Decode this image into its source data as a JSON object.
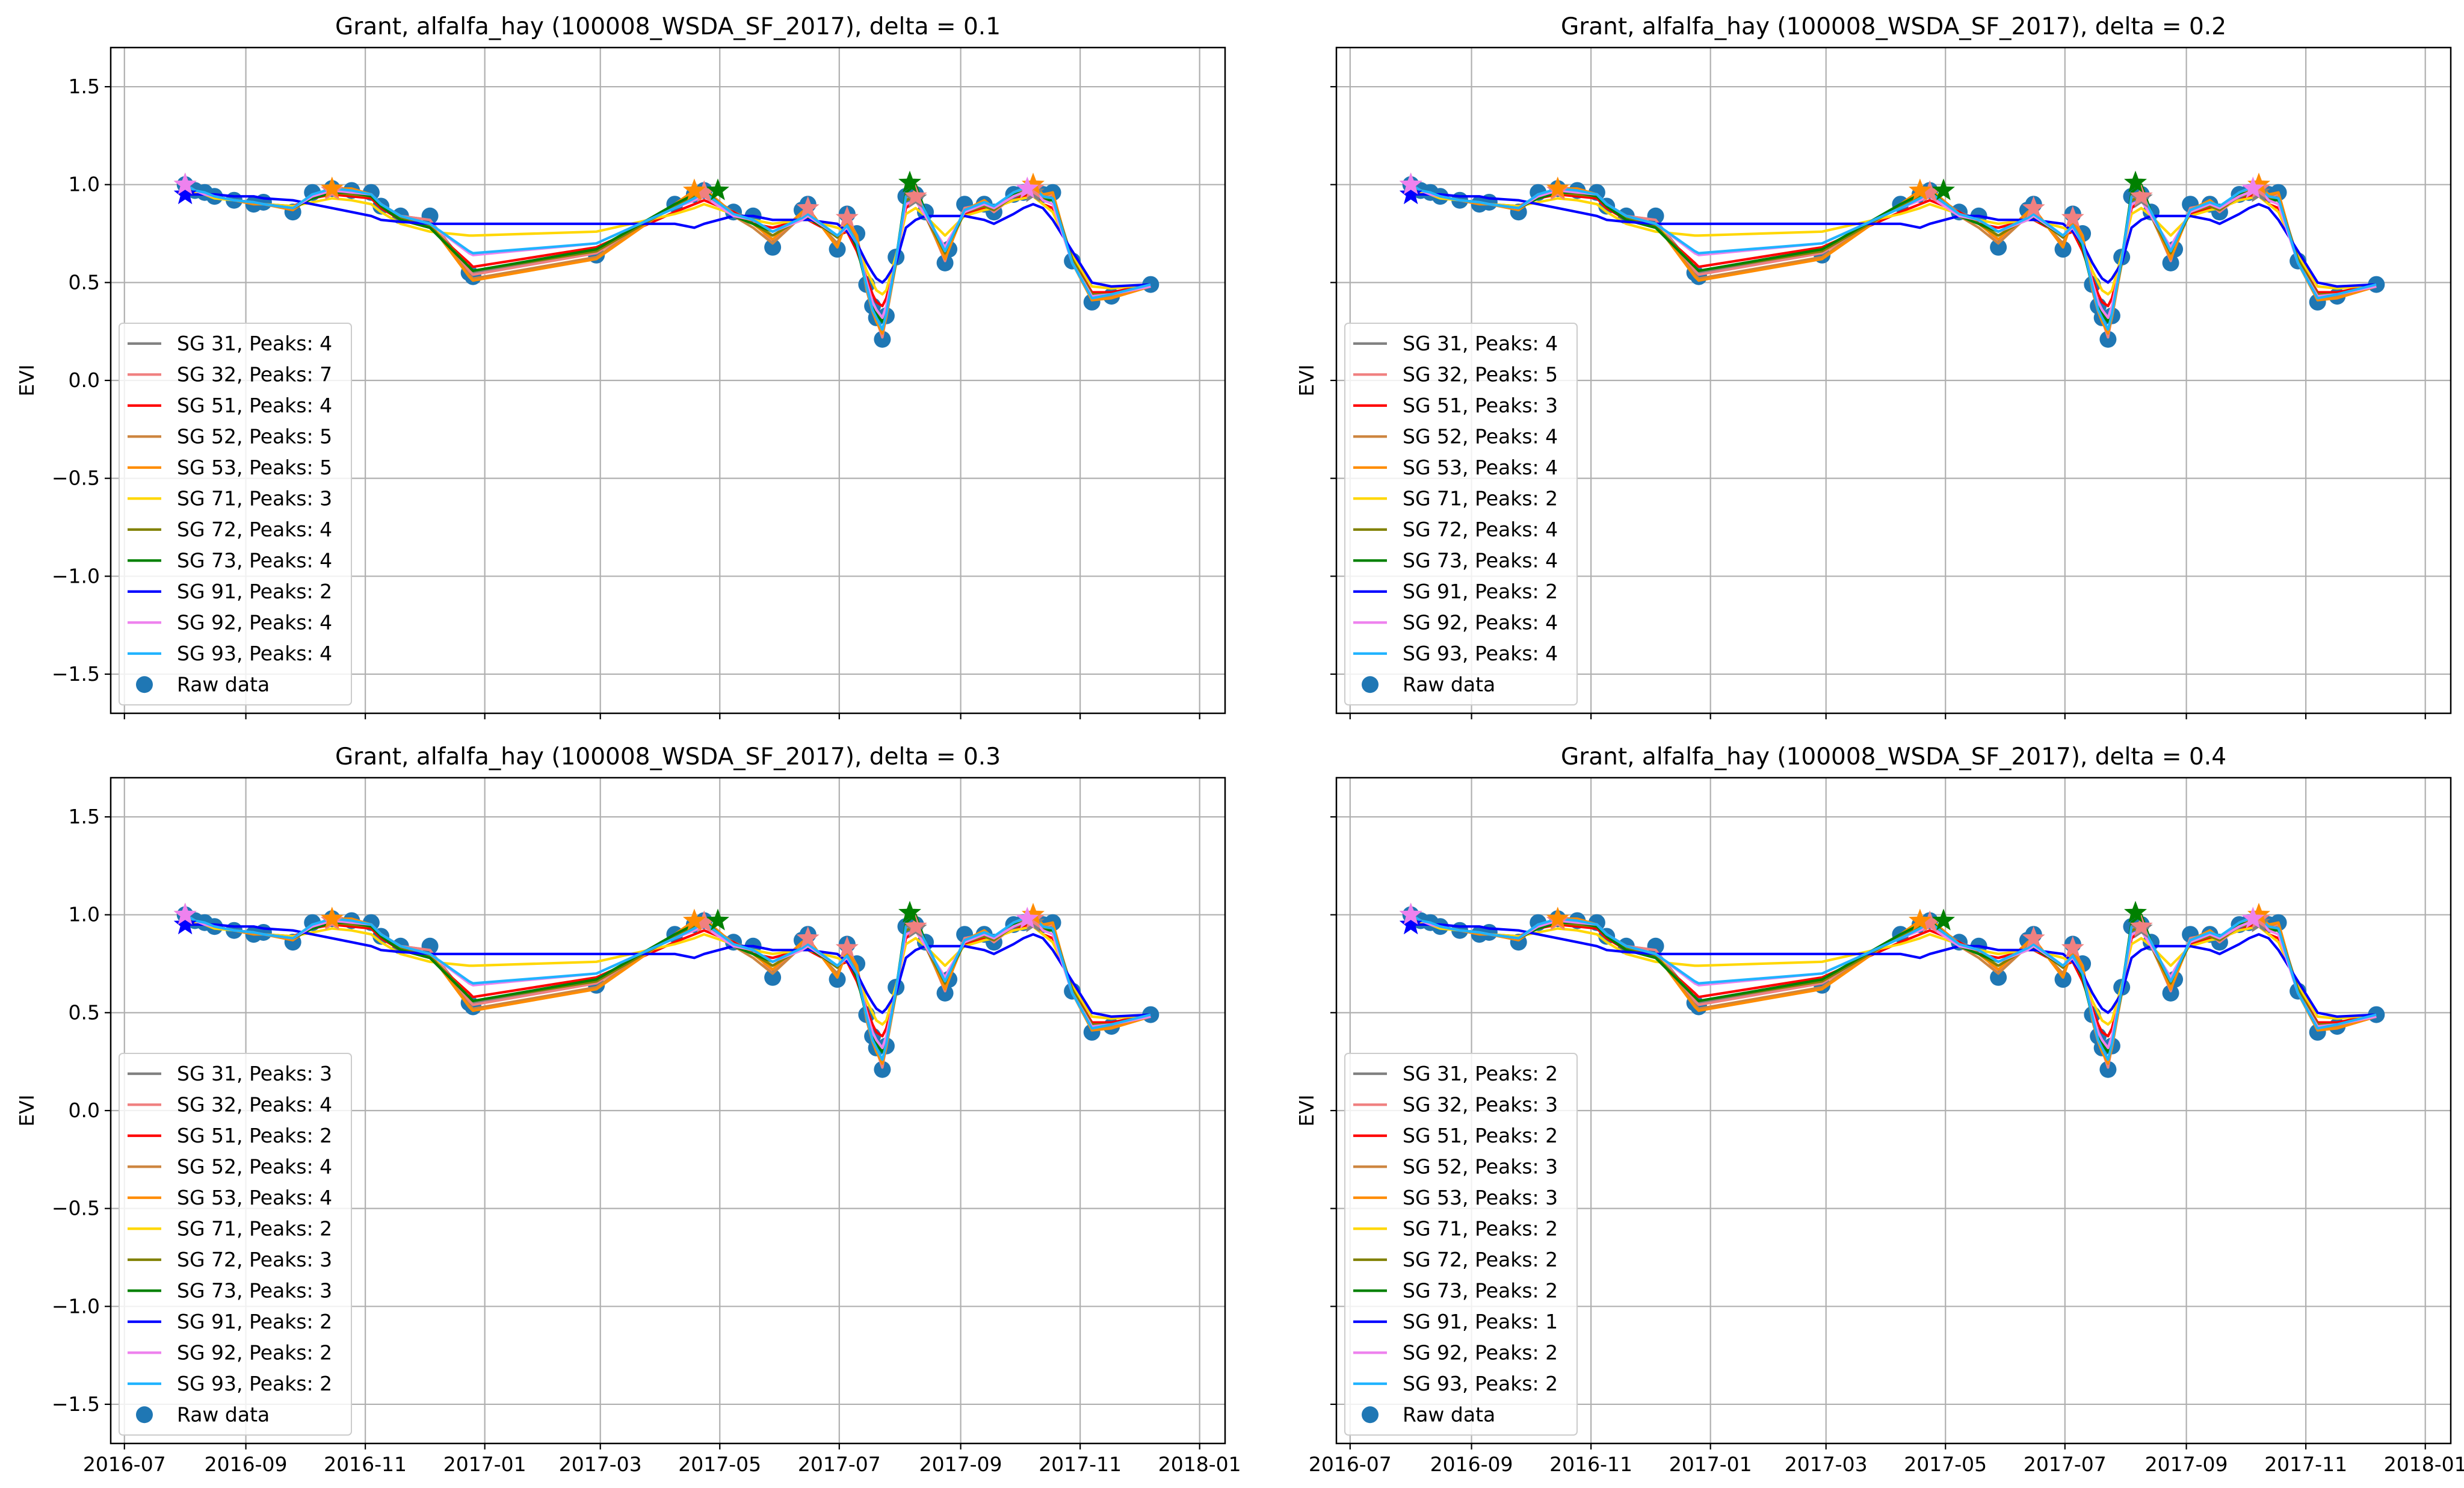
{
  "figure": {
    "ylabel": "EVI",
    "ytick_labels": [
      "1.5",
      "1.0",
      "0.5",
      "0.0",
      "−0.5",
      "−1.0",
      "−1.5"
    ],
    "xtick_labels": [
      "2016-07",
      "2016-09",
      "2016-11",
      "2017-01",
      "2017-03",
      "2017-05",
      "2017-07",
      "2017-09",
      "2017-11",
      "2018-01"
    ],
    "raw_label": "Raw data"
  },
  "chart_data": [
    {
      "type": "line",
      "title": "Grant, alfalfa_hay (100008_WSDA_SF_2017), delta = 0.1",
      "xlabel": "",
      "ylabel": "EVI",
      "x_type": "date",
      "xlim": [
        "2016-06-24",
        "2018-01-14"
      ],
      "ylim": [
        -1.7,
        1.7
      ],
      "grid": true,
      "legend_position": "lower-left",
      "series": [
        {
          "name": "SG 31, Peaks: 4",
          "color": "#808080"
        },
        {
          "name": "SG 32, Peaks: 7",
          "color": "#f08080"
        },
        {
          "name": "SG 51, Peaks: 4",
          "color": "#ff0000"
        },
        {
          "name": "SG 52, Peaks: 5",
          "color": "#cd853f"
        },
        {
          "name": "SG 53, Peaks: 5",
          "color": "#ff8c00"
        },
        {
          "name": "SG 71, Peaks: 3",
          "color": "#ffd700"
        },
        {
          "name": "SG 72, Peaks: 4",
          "color": "#808000"
        },
        {
          "name": "SG 73, Peaks: 4",
          "color": "#008000"
        },
        {
          "name": "SG 91, Peaks: 2",
          "color": "#0000ff"
        },
        {
          "name": "SG 92, Peaks: 4",
          "color": "#ee82ee"
        },
        {
          "name": "SG 93, Peaks: 4",
          "color": "#1fb3ff"
        }
      ]
    },
    {
      "type": "line",
      "title": "Grant, alfalfa_hay (100008_WSDA_SF_2017), delta = 0.2",
      "xlabel": "",
      "ylabel": "EVI",
      "x_type": "date",
      "xlim": [
        "2016-06-24",
        "2018-01-14"
      ],
      "ylim": [
        -1.7,
        1.7
      ],
      "grid": true,
      "legend_position": "lower-left",
      "series": [
        {
          "name": "SG 31, Peaks: 4",
          "color": "#808080"
        },
        {
          "name": "SG 32, Peaks: 5",
          "color": "#f08080"
        },
        {
          "name": "SG 51, Peaks: 3",
          "color": "#ff0000"
        },
        {
          "name": "SG 52, Peaks: 4",
          "color": "#cd853f"
        },
        {
          "name": "SG 53, Peaks: 4",
          "color": "#ff8c00"
        },
        {
          "name": "SG 71, Peaks: 2",
          "color": "#ffd700"
        },
        {
          "name": "SG 72, Peaks: 4",
          "color": "#808000"
        },
        {
          "name": "SG 73, Peaks: 4",
          "color": "#008000"
        },
        {
          "name": "SG 91, Peaks: 2",
          "color": "#0000ff"
        },
        {
          "name": "SG 92, Peaks: 4",
          "color": "#ee82ee"
        },
        {
          "name": "SG 93, Peaks: 4",
          "color": "#1fb3ff"
        }
      ]
    },
    {
      "type": "line",
      "title": "Grant, alfalfa_hay (100008_WSDA_SF_2017), delta = 0.3",
      "xlabel": "",
      "ylabel": "EVI",
      "x_type": "date",
      "xlim": [
        "2016-06-24",
        "2018-01-14"
      ],
      "ylim": [
        -1.7,
        1.7
      ],
      "grid": true,
      "legend_position": "lower-left",
      "series": [
        {
          "name": "SG 31, Peaks: 3",
          "color": "#808080"
        },
        {
          "name": "SG 32, Peaks: 4",
          "color": "#f08080"
        },
        {
          "name": "SG 51, Peaks: 2",
          "color": "#ff0000"
        },
        {
          "name": "SG 52, Peaks: 4",
          "color": "#cd853f"
        },
        {
          "name": "SG 53, Peaks: 4",
          "color": "#ff8c00"
        },
        {
          "name": "SG 71, Peaks: 2",
          "color": "#ffd700"
        },
        {
          "name": "SG 72, Peaks: 3",
          "color": "#808000"
        },
        {
          "name": "SG 73, Peaks: 3",
          "color": "#008000"
        },
        {
          "name": "SG 91, Peaks: 2",
          "color": "#0000ff"
        },
        {
          "name": "SG 92, Peaks: 2",
          "color": "#ee82ee"
        },
        {
          "name": "SG 93, Peaks: 2",
          "color": "#1fb3ff"
        }
      ]
    },
    {
      "type": "line",
      "title": "Grant, alfalfa_hay (100008_WSDA_SF_2017), delta = 0.4",
      "xlabel": "",
      "ylabel": "EVI",
      "x_type": "date",
      "xlim": [
        "2016-06-24",
        "2018-01-14"
      ],
      "ylim": [
        -1.7,
        1.7
      ],
      "grid": true,
      "legend_position": "lower-left",
      "series": [
        {
          "name": "SG 31, Peaks: 2",
          "color": "#808080"
        },
        {
          "name": "SG 32, Peaks: 3",
          "color": "#f08080"
        },
        {
          "name": "SG 51, Peaks: 2",
          "color": "#ff0000"
        },
        {
          "name": "SG 52, Peaks: 3",
          "color": "#cd853f"
        },
        {
          "name": "SG 53, Peaks: 3",
          "color": "#ff8c00"
        },
        {
          "name": "SG 71, Peaks: 2",
          "color": "#ffd700"
        },
        {
          "name": "SG 72, Peaks: 2",
          "color": "#808000"
        },
        {
          "name": "SG 73, Peaks: 2",
          "color": "#008000"
        },
        {
          "name": "SG 91, Peaks: 1",
          "color": "#0000ff"
        },
        {
          "name": "SG 92, Peaks: 2",
          "color": "#ee82ee"
        },
        {
          "name": "SG 93, Peaks: 2",
          "color": "#1fb3ff"
        }
      ]
    }
  ],
  "raw_data": {
    "name": "Raw data",
    "color": "#1f77b4",
    "x": [
      "2016-08-01",
      "2016-08-06",
      "2016-08-11",
      "2016-08-16",
      "2016-08-26",
      "2016-09-05",
      "2016-09-10",
      "2016-09-25",
      "2016-10-05",
      "2016-10-15",
      "2016-10-25",
      "2016-11-04",
      "2016-11-09",
      "2016-11-19",
      "2016-12-04",
      "2016-12-24",
      "2016-12-26",
      "2017-02-27",
      "2017-04-08",
      "2017-04-18",
      "2017-04-23",
      "2017-05-08",
      "2017-05-18",
      "2017-05-28",
      "2017-06-12",
      "2017-06-15",
      "2017-06-30",
      "2017-07-05",
      "2017-07-10",
      "2017-07-15",
      "2017-07-18",
      "2017-07-20",
      "2017-07-23",
      "2017-07-25",
      "2017-07-30",
      "2017-08-04",
      "2017-08-09",
      "2017-08-14",
      "2017-08-24",
      "2017-08-26",
      "2017-09-03",
      "2017-09-13",
      "2017-09-18",
      "2017-09-28",
      "2017-10-03",
      "2017-10-08",
      "2017-10-13",
      "2017-10-18",
      "2017-10-28",
      "2017-11-07",
      "2017-11-17",
      "2017-12-07"
    ],
    "y": [
      1.0,
      0.97,
      0.96,
      0.94,
      0.92,
      0.9,
      0.91,
      0.86,
      0.96,
      0.98,
      0.97,
      0.96,
      0.89,
      0.84,
      0.84,
      0.55,
      0.53,
      0.64,
      0.9,
      0.95,
      0.97,
      0.86,
      0.84,
      0.68,
      0.87,
      0.9,
      0.67,
      0.85,
      0.75,
      0.49,
      0.38,
      0.32,
      0.21,
      0.33,
      0.63,
      0.94,
      0.95,
      0.86,
      0.6,
      0.67,
      0.9,
      0.9,
      0.86,
      0.95,
      0.96,
      0.98,
      0.95,
      0.96,
      0.61,
      0.4,
      0.43,
      0.49
    ]
  },
  "smoothed": [
    {
      "name": "SG 31",
      "color": "#808080",
      "y": [
        1.0,
        0.97,
        0.96,
        0.94,
        0.92,
        0.9,
        0.9,
        0.88,
        0.95,
        0.97,
        0.96,
        0.95,
        0.9,
        0.84,
        0.82,
        0.57,
        0.55,
        0.66,
        0.89,
        0.94,
        0.96,
        0.86,
        0.82,
        0.72,
        0.85,
        0.86,
        0.7,
        0.8,
        0.72,
        0.48,
        0.37,
        0.32,
        0.24,
        0.34,
        0.62,
        0.92,
        0.93,
        0.84,
        0.63,
        0.68,
        0.88,
        0.9,
        0.87,
        0.94,
        0.95,
        0.96,
        0.93,
        0.94,
        0.62,
        0.42,
        0.44,
        0.49
      ]
    },
    {
      "name": "SG 32",
      "color": "#f08080",
      "y": [
        1.0,
        0.97,
        0.95,
        0.94,
        0.92,
        0.91,
        0.9,
        0.88,
        0.95,
        0.97,
        0.96,
        0.95,
        0.9,
        0.84,
        0.82,
        0.56,
        0.54,
        0.65,
        0.89,
        0.95,
        0.96,
        0.85,
        0.82,
        0.7,
        0.86,
        0.88,
        0.68,
        0.83,
        0.74,
        0.48,
        0.37,
        0.31,
        0.22,
        0.33,
        0.62,
        0.93,
        0.94,
        0.85,
        0.61,
        0.68,
        0.88,
        0.9,
        0.86,
        0.94,
        0.95,
        0.98,
        0.94,
        0.95,
        0.61,
        0.41,
        0.43,
        0.48
      ]
    },
    {
      "name": "SG 51",
      "color": "#ff0000",
      "y": [
        0.98,
        0.97,
        0.95,
        0.94,
        0.92,
        0.91,
        0.9,
        0.89,
        0.93,
        0.95,
        0.94,
        0.93,
        0.88,
        0.82,
        0.78,
        0.6,
        0.58,
        0.68,
        0.86,
        0.9,
        0.92,
        0.86,
        0.8,
        0.78,
        0.82,
        0.82,
        0.74,
        0.76,
        0.66,
        0.52,
        0.44,
        0.4,
        0.38,
        0.42,
        0.62,
        0.88,
        0.92,
        0.84,
        0.68,
        0.72,
        0.85,
        0.88,
        0.88,
        0.92,
        0.94,
        0.95,
        0.9,
        0.88,
        0.62,
        0.45,
        0.45,
        0.49
      ]
    },
    {
      "name": "SG 52",
      "color": "#cd853f",
      "y": [
        0.99,
        0.97,
        0.95,
        0.94,
        0.92,
        0.91,
        0.9,
        0.88,
        0.94,
        0.97,
        0.97,
        0.95,
        0.9,
        0.84,
        0.8,
        0.54,
        0.52,
        0.63,
        0.9,
        0.96,
        0.97,
        0.84,
        0.78,
        0.7,
        0.84,
        0.86,
        0.7,
        0.82,
        0.72,
        0.46,
        0.35,
        0.3,
        0.24,
        0.32,
        0.6,
        0.94,
        0.95,
        0.84,
        0.62,
        0.68,
        0.86,
        0.9,
        0.87,
        0.96,
        0.97,
        0.98,
        0.94,
        0.96,
        0.6,
        0.42,
        0.43,
        0.48
      ]
    },
    {
      "name": "SG 53",
      "color": "#ff8c00",
      "y": [
        1.0,
        0.97,
        0.95,
        0.94,
        0.92,
        0.9,
        0.9,
        0.87,
        0.94,
        0.98,
        0.98,
        0.95,
        0.9,
        0.84,
        0.8,
        0.53,
        0.51,
        0.62,
        0.9,
        0.97,
        0.98,
        0.85,
        0.8,
        0.72,
        0.86,
        0.88,
        0.68,
        0.82,
        0.74,
        0.47,
        0.36,
        0.3,
        0.24,
        0.33,
        0.6,
        0.95,
        0.96,
        0.85,
        0.62,
        0.67,
        0.87,
        0.92,
        0.88,
        0.96,
        0.98,
        1.0,
        0.95,
        0.96,
        0.6,
        0.41,
        0.42,
        0.48
      ]
    },
    {
      "name": "SG 71",
      "color": "#ffd700",
      "y": [
        0.97,
        0.96,
        0.95,
        0.93,
        0.92,
        0.91,
        0.9,
        0.89,
        0.91,
        0.93,
        0.92,
        0.9,
        0.86,
        0.8,
        0.76,
        0.74,
        0.74,
        0.76,
        0.85,
        0.88,
        0.9,
        0.85,
        0.82,
        0.8,
        0.82,
        0.82,
        0.78,
        0.76,
        0.7,
        0.56,
        0.5,
        0.46,
        0.44,
        0.46,
        0.64,
        0.85,
        0.88,
        0.84,
        0.74,
        0.76,
        0.84,
        0.87,
        0.88,
        0.92,
        0.93,
        0.94,
        0.9,
        0.86,
        0.64,
        0.48,
        0.47,
        0.49
      ]
    },
    {
      "name": "SG 72",
      "color": "#808000",
      "y": [
        0.99,
        0.97,
        0.95,
        0.94,
        0.92,
        0.91,
        0.9,
        0.88,
        0.93,
        0.96,
        0.95,
        0.94,
        0.89,
        0.83,
        0.79,
        0.58,
        0.56,
        0.66,
        0.89,
        0.94,
        0.96,
        0.84,
        0.8,
        0.74,
        0.83,
        0.84,
        0.73,
        0.79,
        0.7,
        0.5,
        0.4,
        0.35,
        0.3,
        0.36,
        0.6,
        0.92,
        0.94,
        0.84,
        0.65,
        0.7,
        0.86,
        0.89,
        0.87,
        0.94,
        0.95,
        0.97,
        0.93,
        0.93,
        0.62,
        0.44,
        0.44,
        0.48
      ]
    },
    {
      "name": "SG 73",
      "color": "#008000",
      "y": [
        0.99,
        0.97,
        0.96,
        0.94,
        0.92,
        0.91,
        0.9,
        0.88,
        0.93,
        0.96,
        0.96,
        0.94,
        0.89,
        0.82,
        0.78,
        0.58,
        0.56,
        0.67,
        0.9,
        0.95,
        0.97,
        0.84,
        0.8,
        0.76,
        0.82,
        0.83,
        0.74,
        0.78,
        0.68,
        0.48,
        0.38,
        0.34,
        0.3,
        0.36,
        0.62,
        0.96,
        1.0,
        0.86,
        0.66,
        0.7,
        0.86,
        0.9,
        0.88,
        0.95,
        0.96,
        0.98,
        0.92,
        0.92,
        0.6,
        0.43,
        0.44,
        0.49
      ]
    },
    {
      "name": "SG 91",
      "color": "#0000ff",
      "y": [
        0.95,
        0.95,
        0.95,
        0.95,
        0.94,
        0.94,
        0.93,
        0.92,
        0.9,
        0.88,
        0.86,
        0.84,
        0.82,
        0.81,
        0.8,
        0.8,
        0.8,
        0.8,
        0.8,
        0.78,
        0.8,
        0.84,
        0.84,
        0.82,
        0.82,
        0.82,
        0.8,
        0.76,
        0.7,
        0.6,
        0.55,
        0.52,
        0.5,
        0.52,
        0.6,
        0.78,
        0.82,
        0.84,
        0.84,
        0.84,
        0.84,
        0.82,
        0.8,
        0.85,
        0.88,
        0.9,
        0.88,
        0.82,
        0.66,
        0.5,
        0.48,
        0.49
      ]
    },
    {
      "name": "SG 92",
      "color": "#ee82ee",
      "y": [
        1.0,
        0.97,
        0.95,
        0.94,
        0.92,
        0.91,
        0.9,
        0.88,
        0.94,
        0.97,
        0.96,
        0.95,
        0.9,
        0.84,
        0.8,
        0.65,
        0.64,
        0.7,
        0.88,
        0.92,
        0.94,
        0.84,
        0.82,
        0.76,
        0.82,
        0.84,
        0.74,
        0.78,
        0.7,
        0.5,
        0.4,
        0.36,
        0.32,
        0.38,
        0.62,
        0.9,
        0.92,
        0.84,
        0.68,
        0.72,
        0.86,
        0.9,
        0.88,
        0.94,
        0.96,
        0.98,
        0.92,
        0.9,
        0.6,
        0.43,
        0.44,
        0.48
      ]
    },
    {
      "name": "SG 93",
      "color": "#1fb3ff",
      "y": [
        1.0,
        0.97,
        0.96,
        0.94,
        0.92,
        0.91,
        0.9,
        0.88,
        0.95,
        0.98,
        0.97,
        0.95,
        0.9,
        0.84,
        0.8,
        0.66,
        0.65,
        0.7,
        0.88,
        0.93,
        0.96,
        0.85,
        0.82,
        0.76,
        0.83,
        0.85,
        0.74,
        0.79,
        0.7,
        0.48,
        0.36,
        0.32,
        0.26,
        0.34,
        0.62,
        0.94,
        0.96,
        0.86,
        0.66,
        0.7,
        0.87,
        0.91,
        0.89,
        0.96,
        0.98,
        0.99,
        0.94,
        0.93,
        0.6,
        0.42,
        0.44,
        0.49
      ]
    }
  ],
  "peak_markers": [
    {
      "color": "#0000ff",
      "points": [
        {
          "x": "2016-08-01",
          "y": 0.95
        }
      ]
    },
    {
      "color": "#808080",
      "points": [
        {
          "x": "2016-08-01",
          "y": 1.0
        },
        {
          "x": "2017-04-23",
          "y": 0.96
        },
        {
          "x": "2017-08-09",
          "y": 0.93
        },
        {
          "x": "2017-10-08",
          "y": 0.96
        }
      ]
    },
    {
      "color": "#f08080",
      "points": [
        {
          "x": "2016-08-01",
          "y": 1.0
        },
        {
          "x": "2016-10-15",
          "y": 0.97
        },
        {
          "x": "2017-04-23",
          "y": 0.96
        },
        {
          "x": "2017-06-15",
          "y": 0.88
        },
        {
          "x": "2017-07-05",
          "y": 0.83
        },
        {
          "x": "2017-08-09",
          "y": 0.94
        },
        {
          "x": "2017-10-08",
          "y": 0.98
        }
      ]
    },
    {
      "color": "#ff8c00",
      "points": [
        {
          "x": "2016-10-15",
          "y": 0.98
        },
        {
          "x": "2017-04-18",
          "y": 0.97
        },
        {
          "x": "2017-10-08",
          "y": 1.0
        }
      ]
    },
    {
      "color": "#008000",
      "points": [
        {
          "x": "2017-04-30",
          "y": 0.97
        },
        {
          "x": "2017-08-06",
          "y": 1.01
        }
      ]
    },
    {
      "color": "#ee82ee",
      "points": [
        {
          "x": "2016-08-01",
          "y": 1.0
        },
        {
          "x": "2017-10-05",
          "y": 0.98
        }
      ]
    }
  ]
}
